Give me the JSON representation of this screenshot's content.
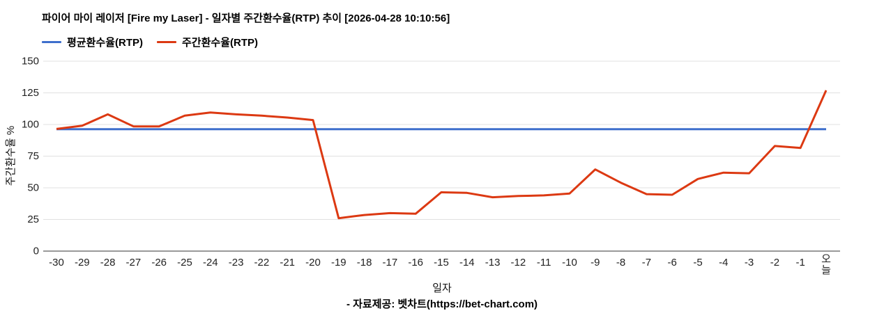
{
  "header": {
    "title": "파이어 마이 레이저 [Fire my Laser] - 일자별 주간환수율(RTP) 추이 [2026-04-28 10:10:56]"
  },
  "legend": {
    "items": [
      {
        "label": "평균환수율(RTP)",
        "color": "#3e6fcc"
      },
      {
        "label": "주간환수율(RTP)",
        "color": "#dc3912"
      }
    ]
  },
  "chart_data": {
    "type": "line",
    "title": "파이어 마이 레이저 [Fire my Laser] - 일자별 주간환수율(RTP) 추이 [2026-04-28 10:10:56]",
    "xlabel": "일자",
    "ylabel": "주간환수율 %",
    "ylim": [
      0,
      150
    ],
    "yticks": [
      0,
      25,
      50,
      75,
      100,
      125,
      150
    ],
    "grid": "horizontal",
    "legend_position": "top",
    "last_category_vertical": true,
    "categories": [
      "-30",
      "-29",
      "-28",
      "-27",
      "-26",
      "-25",
      "-24",
      "-23",
      "-22",
      "-21",
      "-20",
      "-19",
      "-18",
      "-17",
      "-16",
      "-15",
      "-14",
      "-13",
      "-12",
      "-11",
      "-10",
      "-9",
      "-8",
      "-7",
      "-6",
      "-5",
      "-4",
      "-3",
      "-2",
      "-1",
      "오늘"
    ],
    "series": [
      {
        "name": "평균환수율(RTP)",
        "color": "#3e6fcc",
        "values": [
          96.3,
          96.3,
          96.3,
          96.3,
          96.3,
          96.3,
          96.3,
          96.3,
          96.3,
          96.3,
          96.3,
          96.3,
          96.3,
          96.3,
          96.3,
          96.3,
          96.3,
          96.3,
          96.3,
          96.3,
          96.3,
          96.3,
          96.3,
          96.3,
          96.3,
          96.3,
          96.3,
          96.3,
          96.3,
          96.3,
          96.3
        ]
      },
      {
        "name": "주간환수율(RTP)",
        "color": "#dc3912",
        "values": [
          96.5,
          99,
          108,
          98.5,
          98.5,
          107,
          109.5,
          108,
          107,
          105.5,
          103.5,
          26,
          28.5,
          30,
          29.5,
          46.5,
          46,
          42.5,
          43.5,
          44,
          45.5,
          64.5,
          54,
          45,
          44.5,
          57,
          62,
          61.5,
          83,
          81.5,
          127
        ]
      }
    ]
  },
  "footer": {
    "source": "- 자료제공: 벳차트(https://bet-chart.com)"
  }
}
